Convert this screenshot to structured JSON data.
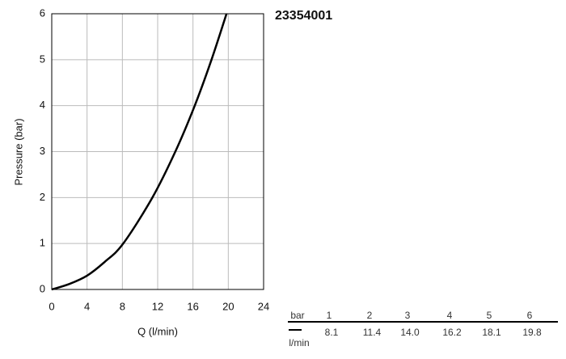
{
  "chart_data": {
    "type": "line",
    "title": "23354001",
    "x_label": "Q (l/min)",
    "y_label": "Pressure (bar)",
    "series": [
      {
        "color": "#000000",
        "x": [
          0,
          2,
          4,
          6,
          8.1,
          11.4,
          14.0,
          16.2,
          18.1,
          19.8
        ],
        "values": [
          0,
          0.12,
          0.3,
          0.6,
          1,
          2,
          3,
          4,
          5,
          6
        ]
      }
    ],
    "xlim": [
      0,
      24
    ],
    "xticks": [
      0,
      4,
      8,
      12,
      16,
      20,
      24
    ],
    "ylim": [
      0,
      6
    ],
    "yticks": [
      0,
      1,
      2,
      3,
      4,
      5,
      6
    ],
    "grid": true
  },
  "table": {
    "header": [
      "bar",
      "1",
      "2",
      "3",
      "4",
      "5",
      "6"
    ],
    "rows": [
      [
        "l/min",
        "8.1",
        "11.4",
        "14.0",
        "16.2",
        "18.1",
        "19.8"
      ]
    ]
  }
}
